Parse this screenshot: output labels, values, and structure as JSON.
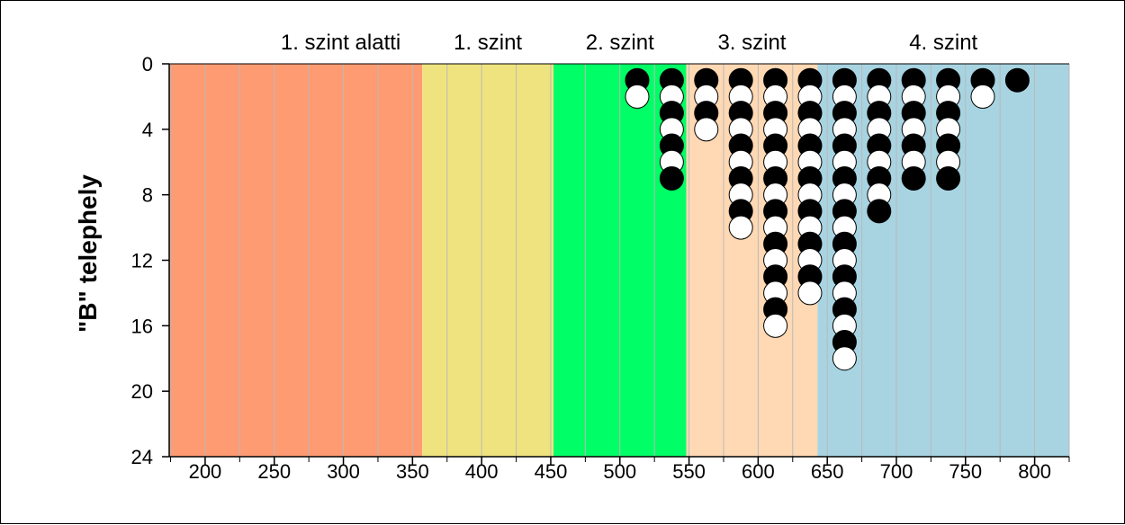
{
  "chart_data": {
    "type": "scatter",
    "ylabel": "\"B\" telephely",
    "xlim": [
      174,
      825
    ],
    "ylim": [
      0,
      24
    ],
    "y_inverted": true,
    "x_ticks": [
      200,
      250,
      300,
      350,
      400,
      450,
      500,
      550,
      600,
      650,
      700,
      750,
      800
    ],
    "x_tick_labels": [
      "200",
      "250",
      "300",
      "350",
      "400",
      "450",
      "500",
      "550",
      "600",
      "650",
      "700",
      "750",
      "800"
    ],
    "y_ticks": [
      0,
      4,
      8,
      12,
      16,
      20,
      24
    ],
    "y_tick_labels": [
      "0",
      "4",
      "8",
      "12",
      "16",
      "20",
      "24"
    ],
    "grid": {
      "x_minor_step": 25,
      "y": false
    },
    "bands": [
      {
        "label": "1. szint alatti",
        "x_start": 174,
        "x_end": 357,
        "color": "#FF9B72"
      },
      {
        "label": "1. szint",
        "x_start": 357,
        "x_end": 452,
        "color": "#EFE37F"
      },
      {
        "label": "2. szint",
        "x_start": 452,
        "x_end": 548,
        "color": "#00FF66"
      },
      {
        "label": "3. szint",
        "x_start": 548,
        "x_end": 643,
        "color": "#FFD8B4"
      },
      {
        "label": "4. szint",
        "x_start": 643,
        "x_end": 825,
        "color": "#A8D4E2"
      }
    ],
    "colors": {
      "black_marker": "#000000",
      "white_marker": "#ffffff"
    },
    "columns": [
      {
        "x": 512.5,
        "markers": [
          "black",
          "white"
        ]
      },
      {
        "x": 537.5,
        "markers": [
          "black",
          "white",
          "black",
          "white",
          "black",
          "white",
          "black"
        ]
      },
      {
        "x": 562.5,
        "markers": [
          "black",
          "white",
          "black",
          "white"
        ]
      },
      {
        "x": 587.5,
        "markers": [
          "black",
          "white",
          "black",
          "white",
          "black",
          "white",
          "black",
          "white",
          "black",
          "white"
        ]
      },
      {
        "x": 612.5,
        "markers": [
          "black",
          "white",
          "black",
          "white",
          "black",
          "white",
          "black",
          "white",
          "black",
          "white",
          "black",
          "white",
          "black",
          "white",
          "black",
          "white"
        ]
      },
      {
        "x": 637.5,
        "markers": [
          "black",
          "white",
          "black",
          "white",
          "black",
          "white",
          "black",
          "white",
          "black",
          "white",
          "black",
          "white",
          "black",
          "white"
        ]
      },
      {
        "x": 662.5,
        "markers": [
          "black",
          "white",
          "black",
          "white",
          "black",
          "white",
          "black",
          "white",
          "black",
          "white",
          "black",
          "white",
          "black",
          "white",
          "black",
          "white",
          "black",
          "white"
        ]
      },
      {
        "x": 687.5,
        "markers": [
          "black",
          "white",
          "black",
          "white",
          "black",
          "white",
          "black",
          "white",
          "black"
        ]
      },
      {
        "x": 712.5,
        "markers": [
          "black",
          "white",
          "black",
          "white",
          "black",
          "white",
          "black"
        ]
      },
      {
        "x": 737.5,
        "markers": [
          "black",
          "white",
          "black",
          "white",
          "black",
          "white",
          "black"
        ]
      },
      {
        "x": 762.5,
        "markers": [
          "black",
          "white"
        ]
      },
      {
        "x": 787.5,
        "markers": [
          "black"
        ]
      }
    ]
  }
}
